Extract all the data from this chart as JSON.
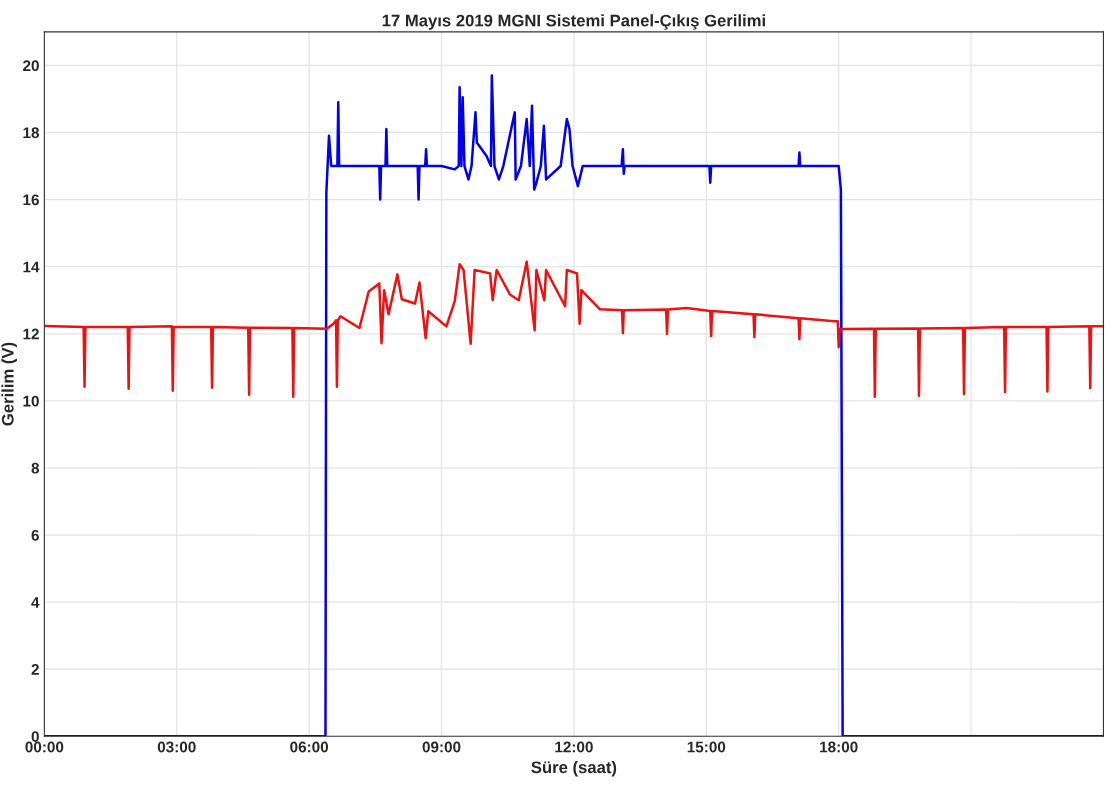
{
  "chart_data": {
    "type": "line",
    "title": "17 Mayıs 2019 MGNI Sistemi Panel-Çıkış Gerilimi",
    "xlabel": "Süre (saat)",
    "ylabel": "Gerilim (V)",
    "xlim": [
      0,
      24
    ],
    "xticks": [
      {
        "value": 0,
        "label": "00:00"
      },
      {
        "value": 3,
        "label": "03:00"
      },
      {
        "value": 6,
        "label": "06:00"
      },
      {
        "value": 9,
        "label": "09:00"
      },
      {
        "value": 12,
        "label": "12:00"
      },
      {
        "value": 15,
        "label": "15:00"
      },
      {
        "value": 18,
        "label": "18:00"
      },
      {
        "value": 21,
        "label": null
      }
    ],
    "ylim": [
      0,
      21
    ],
    "yticks": [
      0,
      2,
      4,
      6,
      8,
      10,
      12,
      14,
      16,
      18,
      20
    ],
    "grid": true,
    "line_style": "solid",
    "marker": "none",
    "series": [
      {
        "color": "#0000ee",
        "x": [
          0,
          6.37,
          6.39,
          6.45,
          6.5,
          6.55,
          6.64,
          6.66,
          6.68,
          7.59,
          7.61,
          7.63,
          7.73,
          7.75,
          7.77,
          8.46,
          8.48,
          8.5,
          8.63,
          8.65,
          8.67,
          9.0,
          9.3,
          9.39,
          9.41,
          9.45,
          9.48,
          9.52,
          9.61,
          9.68,
          9.77,
          9.8,
          10.02,
          10.12,
          10.14,
          10.2,
          10.3,
          10.4,
          10.66,
          10.68,
          10.8,
          10.93,
          11.0,
          11.05,
          11.1,
          11.15,
          11.25,
          11.32,
          11.37,
          11.7,
          11.84,
          11.9,
          11.97,
          12.09,
          12.2,
          13.08,
          13.11,
          13.13,
          13.15,
          15.07,
          15.09,
          15.11,
          17.09,
          17.11,
          17.13,
          18.0,
          18.05,
          18.09,
          24
        ],
        "values": [
          0,
          0,
          16.2,
          17.9,
          17.0,
          17.0,
          17.0,
          18.9,
          17.0,
          17.0,
          16.0,
          17.0,
          17.0,
          18.1,
          17.0,
          17.0,
          16.0,
          17.0,
          17.0,
          17.5,
          17.0,
          17.0,
          16.9,
          17.0,
          19.35,
          17.0,
          19.05,
          17.0,
          16.6,
          17.0,
          18.6,
          17.7,
          17.3,
          17.0,
          19.7,
          17.0,
          16.6,
          17.0,
          18.6,
          16.6,
          17.0,
          18.4,
          17.0,
          18.8,
          16.3,
          16.5,
          17.0,
          18.2,
          16.6,
          17.0,
          18.4,
          18.1,
          17.0,
          16.4,
          17.0,
          17.0,
          17.5,
          16.77,
          17.0,
          17.0,
          16.5,
          17.0,
          17.0,
          17.4,
          17.0,
          17.0,
          16.3,
          0,
          0
        ]
      },
      {
        "color": "#ee1111",
        "x": [
          0,
          0.89,
          0.91,
          0.93,
          1.89,
          1.91,
          1.93,
          2.89,
          2.91,
          2.93,
          3.78,
          3.8,
          3.82,
          4.62,
          4.64,
          4.66,
          5.62,
          5.64,
          5.66,
          6.4,
          6.55,
          6.61,
          6.63,
          6.65,
          6.71,
          7.14,
          7.35,
          7.59,
          7.64,
          7.7,
          7.8,
          8.0,
          8.1,
          8.4,
          8.5,
          8.64,
          8.7,
          9.11,
          9.3,
          9.41,
          9.5,
          9.66,
          9.75,
          10.1,
          10.16,
          10.25,
          10.55,
          10.75,
          10.93,
          11.11,
          11.15,
          11.33,
          11.37,
          11.8,
          11.84,
          12.07,
          12.13,
          12.17,
          12.59,
          13.09,
          13.11,
          13.13,
          14.09,
          14.11,
          14.13,
          14.55,
          15.09,
          15.11,
          15.13,
          16.07,
          16.09,
          16.11,
          17.09,
          17.11,
          17.13,
          17.9,
          17.98,
          18.0,
          18.02,
          18.1,
          18.8,
          18.82,
          18.84,
          19.8,
          19.82,
          19.84,
          20.82,
          20.84,
          20.86,
          21.75,
          21.77,
          21.79,
          22.71,
          22.73,
          22.75,
          23.68,
          23.7,
          23.72,
          24
        ],
        "values": [
          12.23,
          12.2,
          10.42,
          12.2,
          12.2,
          10.36,
          12.2,
          12.22,
          10.3,
          12.2,
          12.2,
          10.39,
          12.2,
          12.18,
          10.18,
          12.18,
          12.17,
          10.12,
          12.17,
          12.15,
          12.3,
          12.4,
          10.42,
          12.4,
          12.52,
          12.17,
          13.26,
          13.5,
          11.72,
          13.3,
          12.58,
          13.77,
          13.03,
          12.9,
          13.53,
          11.87,
          12.67,
          12.22,
          12.97,
          14.07,
          13.9,
          11.7,
          13.9,
          13.8,
          13.0,
          13.9,
          13.17,
          13.0,
          14.15,
          12.1,
          13.9,
          13.0,
          13.9,
          12.82,
          13.9,
          13.8,
          12.3,
          13.3,
          12.73,
          12.7,
          12.02,
          12.7,
          12.72,
          12.0,
          12.72,
          12.77,
          12.68,
          11.93,
          12.68,
          12.58,
          11.9,
          12.58,
          12.46,
          11.84,
          12.46,
          12.37,
          12.37,
          11.6,
          12.14,
          12.14,
          12.15,
          10.12,
          12.15,
          12.16,
          10.15,
          12.16,
          12.17,
          10.2,
          12.17,
          12.2,
          10.26,
          12.2,
          12.2,
          10.28,
          12.2,
          12.22,
          10.38,
          12.22,
          12.22
        ]
      }
    ]
  }
}
